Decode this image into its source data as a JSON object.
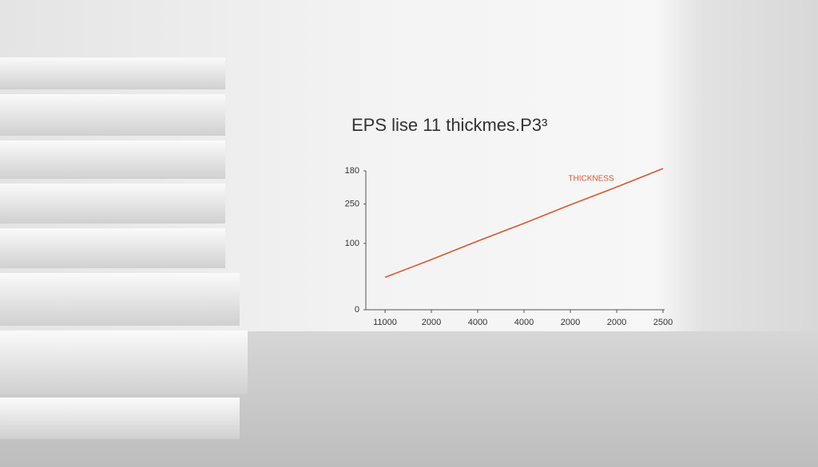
{
  "chart_data": {
    "type": "line",
    "title": "EPS lise 11 thickmes.P3³",
    "categories": [
      "11000",
      "2000",
      "4000",
      "4000",
      "2000",
      "2000",
      "2500"
    ],
    "series": [
      {
        "name": "THICKNESS",
        "color": "#d9572f",
        "values": [
          42,
          65,
          89,
          112,
          136,
          159,
          183
        ]
      }
    ],
    "ylim": [
      0,
      180
    ],
    "yticks": [
      0,
      {
        "value": 86,
        "label": "100"
      },
      {
        "value": 137,
        "label": "250"
      },
      180
    ]
  }
}
